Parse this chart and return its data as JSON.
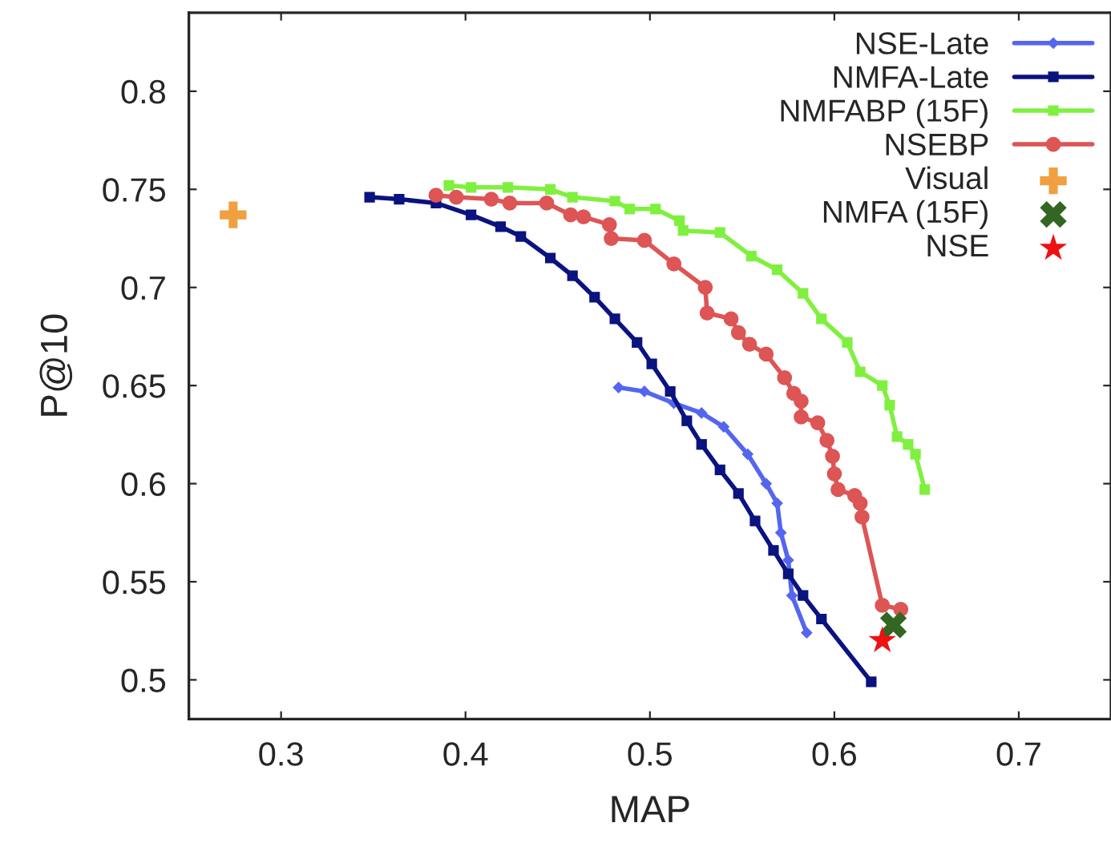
{
  "chart_data": {
    "type": "line",
    "xlabel": "MAP",
    "ylabel": "P@10",
    "xlim": [
      0.25,
      0.75
    ],
    "xticks": [
      0.3,
      0.4,
      0.5,
      0.6,
      0.7
    ],
    "ylim": [
      0.48,
      0.84
    ],
    "yticks": [
      0.5,
      0.55,
      0.6,
      0.65,
      0.7,
      0.75,
      0.8
    ],
    "grid": false,
    "legend": "top right",
    "series": [
      {
        "name": "NSE-Late",
        "marker": "diamond",
        "color": "#5566ee",
        "x": [
          0.483,
          0.497,
          0.513,
          0.528,
          0.54,
          0.553,
          0.563,
          0.569,
          0.571,
          0.575,
          0.577,
          0.585
        ],
        "values": [
          0.649,
          0.647,
          0.641,
          0.636,
          0.629,
          0.615,
          0.6,
          0.59,
          0.575,
          0.561,
          0.543,
          0.524
        ]
      },
      {
        "name": "NMFA-Late",
        "marker": "square",
        "color": "#0a137f",
        "x": [
          0.348,
          0.364,
          0.384,
          0.403,
          0.419,
          0.43,
          0.446,
          0.458,
          0.47,
          0.481,
          0.493,
          0.501,
          0.511,
          0.52,
          0.528,
          0.538,
          0.548,
          0.557,
          0.567,
          0.575,
          0.583,
          0.593,
          0.62
        ],
        "values": [
          0.746,
          0.745,
          0.743,
          0.737,
          0.731,
          0.726,
          0.715,
          0.706,
          0.695,
          0.684,
          0.672,
          0.661,
          0.647,
          0.632,
          0.62,
          0.607,
          0.595,
          0.581,
          0.566,
          0.554,
          0.543,
          0.531,
          0.499
        ]
      },
      {
        "name": "NMFABP (15F)",
        "marker": "square",
        "color": "#80f040",
        "x": [
          0.391,
          0.403,
          0.423,
          0.446,
          0.458,
          0.481,
          0.489,
          0.503,
          0.516,
          0.518,
          0.538,
          0.555,
          0.569,
          0.583,
          0.593,
          0.607,
          0.614,
          0.626,
          0.63,
          0.634,
          0.64,
          0.644,
          0.649
        ],
        "values": [
          0.752,
          0.751,
          0.751,
          0.75,
          0.746,
          0.744,
          0.74,
          0.74,
          0.734,
          0.729,
          0.728,
          0.716,
          0.709,
          0.697,
          0.684,
          0.672,
          0.657,
          0.65,
          0.64,
          0.624,
          0.62,
          0.615,
          0.597
        ]
      },
      {
        "name": "NSEBP",
        "marker": "circle",
        "color": "#dd5555",
        "x": [
          0.384,
          0.395,
          0.414,
          0.424,
          0.444,
          0.457,
          0.464,
          0.478,
          0.479,
          0.497,
          0.513,
          0.53,
          0.531,
          0.544,
          0.548,
          0.554,
          0.563,
          0.573,
          0.578,
          0.582,
          0.582,
          0.591,
          0.596,
          0.599,
          0.6,
          0.602,
          0.611,
          0.614,
          0.615,
          0.626,
          0.636
        ],
        "values": [
          0.747,
          0.746,
          0.745,
          0.743,
          0.743,
          0.737,
          0.736,
          0.732,
          0.725,
          0.724,
          0.712,
          0.7,
          0.687,
          0.684,
          0.677,
          0.671,
          0.666,
          0.654,
          0.646,
          0.642,
          0.634,
          0.631,
          0.622,
          0.614,
          0.605,
          0.597,
          0.594,
          0.59,
          0.583,
          0.538,
          0.536
        ]
      },
      {
        "name": "Visual",
        "type": "scatter",
        "marker": "plus",
        "color": "#f0a040",
        "x": [
          0.274
        ],
        "values": [
          0.737
        ]
      },
      {
        "name": "NMFA (15F)",
        "type": "scatter",
        "marker": "cross",
        "color": "#336622",
        "x": [
          0.632
        ],
        "values": [
          0.528
        ]
      },
      {
        "name": "NSE",
        "type": "scatter",
        "marker": "star",
        "color": "#ee1111",
        "x": [
          0.626
        ],
        "values": [
          0.52
        ]
      }
    ]
  }
}
